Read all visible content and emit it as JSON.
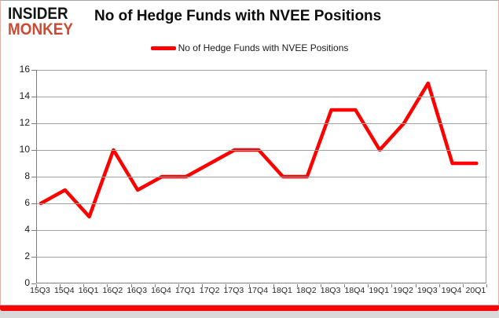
{
  "logo": {
    "line1": "INSIDER",
    "line2": "MONKEY"
  },
  "header": {
    "title": "No of Hedge Funds with NVEE Positions"
  },
  "legend": {
    "label": "No of Hedge Funds with NVEE Positions",
    "swatch_color": "#ff0000"
  },
  "colors": {
    "series_red": "#ff0000",
    "brand_red_bar": "#fa0505",
    "gridline": "#a0a0a0",
    "axis": "#7f7f7f",
    "logo_red": "#cb4a33"
  },
  "chart_data": {
    "type": "line",
    "title": "No of Hedge Funds with NVEE Positions",
    "categories": [
      "15Q3",
      "15Q4",
      "16Q1",
      "16Q2",
      "16Q3",
      "16Q4",
      "17Q1",
      "17Q2",
      "17Q3",
      "17Q4",
      "18Q1",
      "18Q2",
      "18Q3",
      "18Q4",
      "19Q1",
      "19Q2",
      "19Q3",
      "19Q4",
      "20Q1"
    ],
    "series": [
      {
        "name": "No of Hedge Funds with NVEE Positions",
        "color": "#ff0000",
        "values": [
          6,
          7,
          5,
          10,
          7,
          8,
          8,
          9,
          10,
          10,
          8,
          8,
          13,
          13,
          10,
          12,
          15,
          9,
          9
        ]
      }
    ],
    "xlabel": "",
    "ylabel": "",
    "ylim": [
      0,
      16
    ],
    "ytick_step": 2,
    "grid": true,
    "legend_position": "top-center"
  }
}
